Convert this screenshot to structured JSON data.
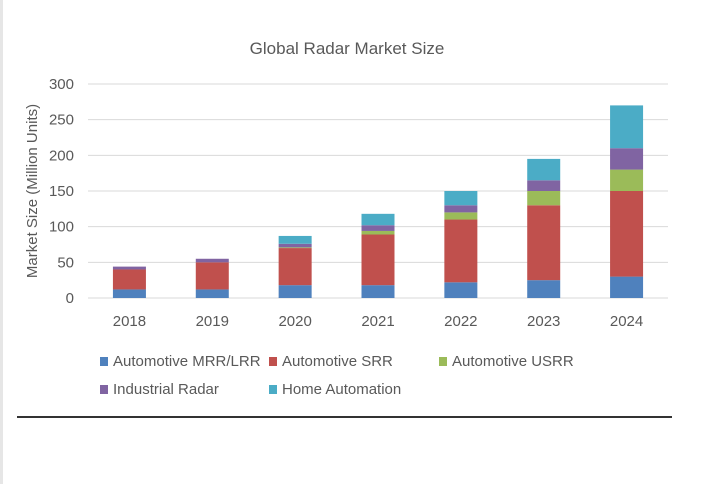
{
  "chart_data": {
    "type": "bar",
    "stacked": true,
    "title": "Global Radar Market Size",
    "xlabel": "",
    "ylabel": "Market Size (Million Units)",
    "ylim": [
      0,
      300
    ],
    "yticks": [
      0,
      50,
      100,
      150,
      200,
      250,
      300
    ],
    "grid": true,
    "legend_position": "bottom",
    "categories": [
      "2018",
      "2019",
      "2020",
      "2021",
      "2022",
      "2023",
      "2024"
    ],
    "series": [
      {
        "name": "Automotive MRR/LRR",
        "color": "#4f81bd",
        "values": [
          12,
          12,
          18,
          18,
          22,
          25,
          30
        ]
      },
      {
        "name": "Automotive SRR",
        "color": "#c0504d",
        "values": [
          28,
          38,
          52,
          71,
          88,
          105,
          120
        ]
      },
      {
        "name": "Automotive USRR",
        "color": "#9bbb59",
        "values": [
          0,
          0,
          1,
          5,
          10,
          20,
          30
        ]
      },
      {
        "name": "Industrial Radar",
        "color": "#8064a2",
        "values": [
          4,
          5,
          5,
          8,
          10,
          15,
          30
        ]
      },
      {
        "name": "Home Automation",
        "color": "#4bacc6",
        "values": [
          0,
          0,
          11,
          16,
          20,
          30,
          60
        ]
      }
    ]
  }
}
